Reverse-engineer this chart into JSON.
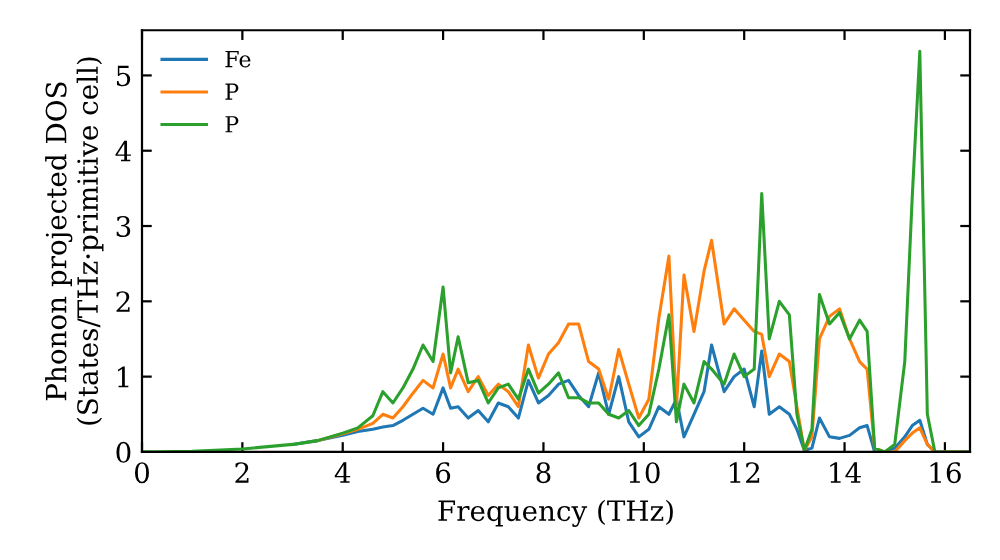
{
  "chart_data": {
    "type": "line",
    "xlabel": "Frequency (THz)",
    "ylabel": "Phonon projected DOS\n(States/THz·primitive cell)",
    "x": [
      0,
      1,
      2,
      3,
      3.5,
      4,
      4.3,
      4.6,
      4.8,
      5.0,
      5.2,
      5.4,
      5.6,
      5.8,
      6.0,
      6.15,
      6.3,
      6.5,
      6.7,
      6.9,
      7.1,
      7.3,
      7.5,
      7.7,
      7.9,
      8.1,
      8.3,
      8.5,
      8.7,
      8.9,
      9.1,
      9.3,
      9.5,
      9.7,
      9.9,
      10.1,
      10.3,
      10.5,
      10.65,
      10.8,
      11.0,
      11.2,
      11.35,
      11.6,
      11.8,
      12.0,
      12.2,
      12.35,
      12.5,
      12.7,
      12.9,
      13.05,
      13.2,
      13.35,
      13.5,
      13.7,
      13.9,
      14.1,
      14.3,
      14.45,
      14.6,
      14.8,
      15.0,
      15.2,
      15.35,
      15.5,
      15.65,
      15.8,
      16.5
    ],
    "series": [
      {
        "name": "Fe",
        "color": "#1f77b4",
        "values": [
          null,
          null,
          null,
          0.1,
          0.15,
          0.22,
          0.27,
          0.3,
          0.33,
          0.35,
          0.42,
          0.5,
          0.58,
          0.5,
          0.85,
          0.58,
          0.6,
          0.45,
          0.55,
          0.4,
          0.65,
          0.6,
          0.45,
          0.95,
          0.65,
          0.75,
          0.9,
          0.95,
          0.75,
          0.6,
          1.05,
          0.5,
          1.0,
          0.4,
          0.2,
          0.3,
          0.6,
          0.5,
          0.7,
          0.2,
          0.5,
          0.8,
          1.42,
          0.8,
          1.0,
          1.1,
          0.6,
          1.34,
          0.5,
          0.6,
          0.5,
          0.3,
          0.02,
          0.05,
          0.45,
          0.2,
          0.18,
          0.22,
          0.32,
          0.35,
          0.0,
          0.0,
          0.05,
          0.2,
          0.35,
          0.42,
          0.1,
          0,
          0
        ]
      },
      {
        "name": "P",
        "color": "#ff7f0e",
        "values": [
          null,
          null,
          null,
          null,
          0.15,
          0.24,
          0.3,
          0.38,
          0.5,
          0.45,
          0.6,
          0.78,
          0.95,
          0.85,
          1.3,
          0.85,
          1.1,
          0.8,
          1.0,
          0.75,
          0.9,
          0.8,
          0.6,
          1.42,
          0.98,
          1.3,
          1.45,
          1.7,
          1.7,
          1.2,
          1.1,
          0.7,
          1.36,
          0.9,
          0.45,
          0.7,
          1.78,
          2.6,
          0.6,
          2.35,
          1.6,
          2.4,
          2.81,
          1.7,
          1.9,
          1.75,
          1.6,
          1.56,
          1.0,
          1.3,
          1.2,
          0.6,
          0.02,
          0.2,
          1.5,
          1.8,
          1.9,
          1.5,
          1.2,
          1.1,
          0.05,
          0.0,
          0.0,
          0.15,
          0.25,
          0.32,
          0.1,
          0,
          0
        ]
      },
      {
        "name": "P",
        "color": "#2ca02c",
        "values": [
          0,
          0.01,
          0.04,
          0.1,
          0.15,
          0.25,
          0.32,
          0.48,
          0.8,
          0.65,
          0.85,
          1.1,
          1.42,
          1.2,
          2.19,
          1.05,
          1.53,
          0.92,
          0.95,
          0.65,
          0.85,
          0.9,
          0.7,
          1.1,
          0.78,
          0.9,
          1.05,
          0.72,
          0.72,
          0.65,
          0.65,
          0.5,
          0.45,
          0.55,
          0.35,
          0.5,
          1.1,
          1.82,
          0.4,
          0.9,
          0.65,
          1.2,
          1.1,
          0.9,
          1.3,
          1.0,
          1.1,
          3.43,
          1.5,
          2.0,
          1.82,
          0.5,
          0.02,
          0.3,
          2.09,
          1.7,
          1.85,
          1.5,
          1.75,
          1.6,
          0.05,
          0.0,
          0.1,
          1.2,
          3.4,
          5.32,
          0.5,
          0,
          0
        ]
      }
    ],
    "xlim": [
      0,
      16.5
    ],
    "xticks": [
      0,
      2,
      4,
      6,
      8,
      10,
      12,
      14,
      16
    ],
    "ylim": [
      0,
      5.6
    ],
    "yticks": [
      0,
      1,
      2,
      3,
      4,
      5
    ],
    "legend": "top left"
  }
}
